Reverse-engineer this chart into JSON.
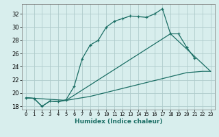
{
  "xlabel": "Humidex (Indice chaleur)",
  "bg_color": "#d8eeed",
  "grid_color": "#b0cccc",
  "line_color": "#1a6e64",
  "xlim": [
    -0.5,
    23.5
  ],
  "ylim": [
    17.5,
    33.5
  ],
  "yticks": [
    18,
    20,
    22,
    24,
    26,
    28,
    30,
    32
  ],
  "xticks": [
    0,
    1,
    2,
    3,
    4,
    5,
    6,
    7,
    8,
    9,
    10,
    11,
    12,
    13,
    14,
    15,
    16,
    17,
    18,
    19,
    20,
    21,
    22,
    23
  ],
  "line1_x": [
    0,
    1,
    2,
    3,
    4,
    5,
    6,
    7,
    8,
    9,
    10,
    11,
    12,
    13,
    14,
    15,
    16,
    17,
    18,
    19,
    20,
    21
  ],
  "line1_y": [
    19.3,
    19.2,
    18.0,
    18.8,
    18.7,
    19.0,
    21.0,
    25.2,
    27.3,
    28.0,
    30.0,
    30.9,
    31.3,
    31.7,
    31.6,
    31.5,
    32.0,
    32.8,
    29.0,
    29.0,
    27.0,
    25.3
  ],
  "line2_x": [
    0,
    1,
    2,
    3,
    4,
    5,
    6,
    7,
    8,
    9,
    10,
    11,
    12,
    13,
    14,
    15,
    16,
    17,
    18,
    19,
    20,
    21,
    22,
    23
  ],
  "line2_y": [
    19.3,
    19.2,
    18.0,
    18.8,
    18.7,
    18.9,
    19.1,
    19.3,
    19.5,
    19.8,
    20.1,
    20.4,
    20.7,
    21.0,
    21.3,
    21.6,
    21.9,
    22.2,
    22.5,
    22.8,
    23.1,
    23.2,
    23.3,
    23.3
  ],
  "line3_x": [
    0,
    5,
    18,
    23
  ],
  "line3_y": [
    19.3,
    18.9,
    29.0,
    23.3
  ]
}
